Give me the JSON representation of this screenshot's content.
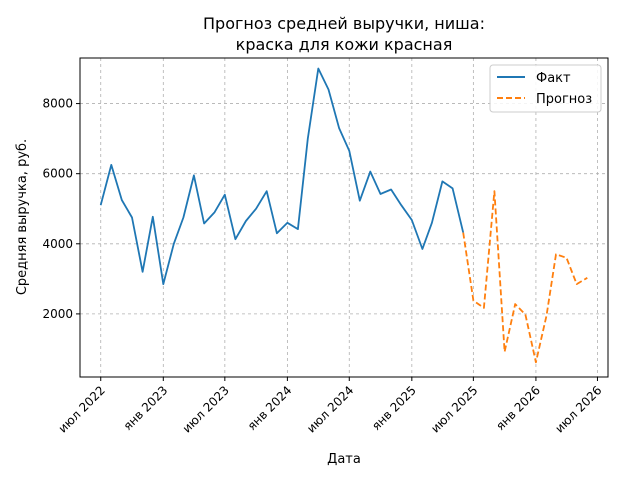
{
  "chart_data": {
    "type": "line",
    "title_lines": [
      "Прогноз средней выручки, ниша:",
      "краска для кожи красная"
    ],
    "xlabel": "Дата",
    "ylabel": "Средняя выручка, руб.",
    "x_range": [
      "2022-05-01",
      "2026-08-01"
    ],
    "ylim": [
      200,
      9300
    ],
    "y_ticks": [
      2000,
      4000,
      6000,
      8000
    ],
    "y_tick_labels": [
      "2000",
      "4000",
      "6000",
      "8000"
    ],
    "x_ticks": [
      "2022-07-01",
      "2023-01-01",
      "2023-07-01",
      "2024-01-01",
      "2024-07-01",
      "2025-01-01",
      "2025-07-01",
      "2026-01-01",
      "2026-07-01"
    ],
    "x_tick_labels": [
      "июл 2022",
      "янв 2023",
      "июл 2023",
      "янв 2024",
      "июл 2024",
      "янв 2025",
      "июл 2025",
      "янв 2026",
      "июл 2026"
    ],
    "grid": true,
    "legend_position": "top-right",
    "series": [
      {
        "name": "Факт",
        "color": "#1f77b4",
        "style": "solid",
        "points": [
          [
            "2022-07-01",
            5100
          ],
          [
            "2022-08-01",
            6250
          ],
          [
            "2022-09-01",
            5250
          ],
          [
            "2022-10-01",
            4750
          ],
          [
            "2022-11-01",
            3200
          ],
          [
            "2022-12-01",
            4770
          ],
          [
            "2023-01-01",
            2850
          ],
          [
            "2023-02-01",
            4000
          ],
          [
            "2023-03-01",
            4750
          ],
          [
            "2023-04-01",
            5950
          ],
          [
            "2023-05-01",
            4580
          ],
          [
            "2023-06-01",
            4900
          ],
          [
            "2023-07-01",
            5400
          ],
          [
            "2023-08-01",
            4130
          ],
          [
            "2023-09-01",
            4650
          ],
          [
            "2023-10-01",
            5000
          ],
          [
            "2023-11-01",
            5500
          ],
          [
            "2023-12-01",
            4300
          ],
          [
            "2024-01-01",
            4600
          ],
          [
            "2024-02-01",
            4420
          ],
          [
            "2024-03-01",
            7000
          ],
          [
            "2024-04-01",
            9000
          ],
          [
            "2024-05-01",
            8400
          ],
          [
            "2024-06-01",
            7300
          ],
          [
            "2024-07-01",
            6650
          ],
          [
            "2024-08-01",
            5230
          ],
          [
            "2024-09-01",
            6060
          ],
          [
            "2024-10-01",
            5420
          ],
          [
            "2024-11-01",
            5550
          ],
          [
            "2024-12-01",
            5100
          ],
          [
            "2025-01-01",
            4680
          ],
          [
            "2025-02-01",
            3850
          ],
          [
            "2025-03-01",
            4600
          ],
          [
            "2025-04-01",
            5780
          ],
          [
            "2025-05-01",
            5580
          ],
          [
            "2025-06-01",
            4320
          ]
        ]
      },
      {
        "name": "Прогноз",
        "color": "#ff7f0e",
        "style": "dashed",
        "points": [
          [
            "2025-06-01",
            4320
          ],
          [
            "2025-07-01",
            2380
          ],
          [
            "2025-08-01",
            2170
          ],
          [
            "2025-09-01",
            5500
          ],
          [
            "2025-10-01",
            920
          ],
          [
            "2025-11-01",
            2280
          ],
          [
            "2025-12-01",
            1980
          ],
          [
            "2026-01-01",
            620
          ],
          [
            "2026-02-01",
            1950
          ],
          [
            "2026-03-01",
            3700
          ],
          [
            "2026-04-01",
            3600
          ],
          [
            "2026-05-01",
            2850
          ],
          [
            "2026-06-01",
            3030
          ]
        ]
      }
    ]
  }
}
